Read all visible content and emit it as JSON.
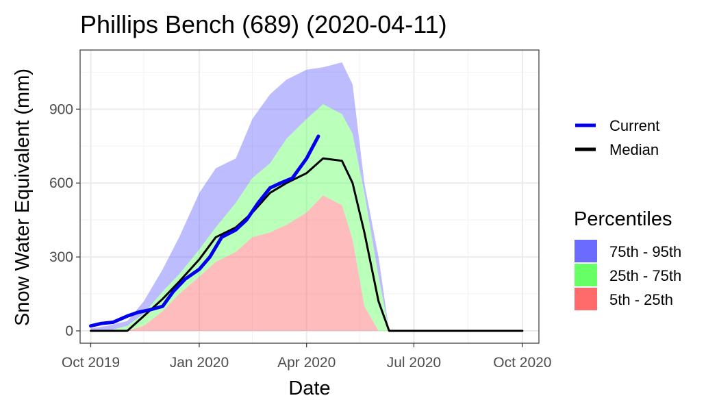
{
  "chart_data": {
    "type": "area",
    "title": "Phillips Bench (689) (2020-04-11)",
    "xlabel": "Date",
    "ylabel": "Snow Water Equivalent (mm)",
    "x_ticks": [
      "Oct 2019",
      "Jan 2020",
      "Apr 2020",
      "Jul 2020",
      "Oct 2020"
    ],
    "y_ticks": [
      "0",
      "300",
      "600",
      "900"
    ],
    "xlim": [
      "2019-09-22",
      "2020-10-15"
    ],
    "ylim": [
      -50,
      1140
    ],
    "grid": true,
    "legend_position": "right",
    "legend_lines_title": "",
    "legend_bands_title": "Percentiles",
    "x": [
      "2019-10-01",
      "2019-10-15",
      "2019-11-01",
      "2019-11-15",
      "2019-12-01",
      "2019-12-15",
      "2020-01-01",
      "2020-01-15",
      "2020-02-01",
      "2020-02-15",
      "2020-03-01",
      "2020-03-15",
      "2020-04-01",
      "2020-04-15",
      "2020-05-01",
      "2020-05-10",
      "2020-05-20",
      "2020-06-01",
      "2020-06-10",
      "2020-06-20",
      "2020-07-01",
      "2020-07-15",
      "2020-08-01",
      "2020-09-01",
      "2020-10-01"
    ],
    "bands": [
      {
        "name": "5th - 25th",
        "color": "#ff6b6b",
        "lower": [
          0,
          0,
          0,
          0,
          0,
          0,
          0,
          0,
          0,
          0,
          0,
          0,
          0,
          0,
          0,
          0,
          0,
          0,
          0,
          0,
          0,
          0,
          0,
          0,
          0
        ],
        "upper": [
          0,
          0,
          0,
          20,
          80,
          150,
          220,
          280,
          320,
          380,
          400,
          430,
          480,
          550,
          510,
          370,
          100,
          0,
          0,
          0,
          0,
          0,
          0,
          0,
          0
        ]
      },
      {
        "name": "25th - 75th",
        "color": "#66ff66",
        "lower": [
          0,
          0,
          0,
          20,
          80,
          150,
          220,
          280,
          320,
          380,
          400,
          430,
          480,
          550,
          510,
          370,
          100,
          0,
          0,
          0,
          0,
          0,
          0,
          0,
          0
        ],
        "upper": [
          0,
          0,
          20,
          70,
          160,
          230,
          330,
          420,
          520,
          620,
          680,
          780,
          860,
          920,
          880,
          800,
          560,
          220,
          0,
          0,
          0,
          0,
          0,
          0,
          0
        ]
      },
      {
        "name": "75th - 95th",
        "color": "#6b6bff",
        "lower": [
          0,
          0,
          20,
          70,
          160,
          230,
          330,
          420,
          520,
          620,
          680,
          780,
          860,
          920,
          880,
          800,
          560,
          220,
          0,
          0,
          0,
          0,
          0,
          0,
          0
        ],
        "upper": [
          10,
          20,
          40,
          120,
          250,
          380,
          560,
          660,
          700,
          860,
          960,
          1020,
          1060,
          1070,
          1090,
          1000,
          600,
          300,
          0,
          0,
          0,
          0,
          0,
          0,
          0
        ]
      }
    ],
    "series": [
      {
        "name": "Median",
        "color": "#000000",
        "x": [
          "2019-10-01",
          "2019-10-15",
          "2019-11-01",
          "2019-11-15",
          "2019-12-01",
          "2019-12-15",
          "2020-01-01",
          "2020-01-15",
          "2020-02-01",
          "2020-02-15",
          "2020-03-01",
          "2020-03-15",
          "2020-04-01",
          "2020-04-15",
          "2020-05-01",
          "2020-05-10",
          "2020-05-20",
          "2020-06-01",
          "2020-06-10",
          "2020-06-20",
          "2020-07-01",
          "2020-07-15",
          "2020-08-01",
          "2020-09-01",
          "2020-10-01"
        ],
        "values": [
          0,
          0,
          0,
          60,
          130,
          200,
          290,
          380,
          420,
          480,
          560,
          600,
          640,
          700,
          690,
          600,
          400,
          120,
          0,
          0,
          0,
          0,
          0,
          0,
          0
        ]
      },
      {
        "name": "Current",
        "color": "#0000ee",
        "x": [
          "2019-10-01",
          "2019-10-10",
          "2019-10-20",
          "2019-11-01",
          "2019-11-10",
          "2019-11-20",
          "2019-12-01",
          "2019-12-10",
          "2019-12-20",
          "2020-01-01",
          "2020-01-10",
          "2020-01-20",
          "2020-02-01",
          "2020-02-10",
          "2020-02-20",
          "2020-03-01",
          "2020-03-10",
          "2020-03-20",
          "2020-04-01",
          "2020-04-11"
        ],
        "values": [
          20,
          30,
          35,
          60,
          75,
          85,
          100,
          160,
          210,
          250,
          300,
          380,
          410,
          450,
          520,
          580,
          600,
          620,
          700,
          790
        ]
      }
    ]
  }
}
